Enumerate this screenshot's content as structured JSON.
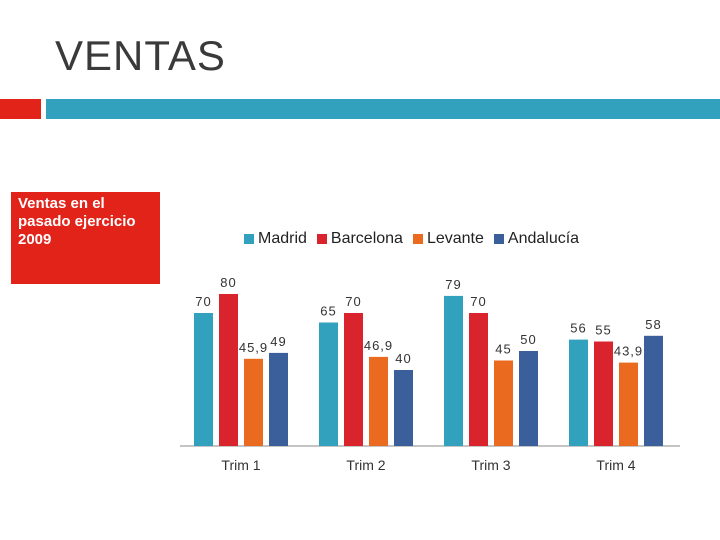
{
  "slide": {
    "title": "VENTAS",
    "side_note": "Ventas en el pasado ejercicio 2009"
  },
  "colors": {
    "accent_red": "#e2231a",
    "accent_teal": "#31a1bd"
  },
  "chart_data": {
    "type": "bar",
    "title": "",
    "categories": [
      "Trim 1",
      "Trim 2",
      "Trim 3",
      "Trim 4"
    ],
    "series": [
      {
        "name": "Madrid",
        "color": "#31a1bd",
        "values": [
          70,
          65,
          79,
          56
        ],
        "labels": [
          "70",
          "65",
          "79",
          "56"
        ]
      },
      {
        "name": "Barcelona",
        "color": "#d9232d",
        "values": [
          80,
          70,
          70,
          55
        ],
        "labels": [
          "80",
          "70",
          "70",
          "55"
        ]
      },
      {
        "name": "Levante",
        "color": "#ea6a1f",
        "values": [
          45.9,
          46.9,
          45,
          43.9
        ],
        "labels": [
          "45,9",
          "46,9",
          "45",
          "43,9"
        ]
      },
      {
        "name": "Andalucía",
        "color": "#3a5f9a",
        "values": [
          49,
          40,
          50,
          58
        ],
        "labels": [
          "49",
          "40",
          "50",
          "58"
        ]
      }
    ],
    "legend_position": "top",
    "grid": false,
    "ylim": [
      0,
      100
    ]
  }
}
